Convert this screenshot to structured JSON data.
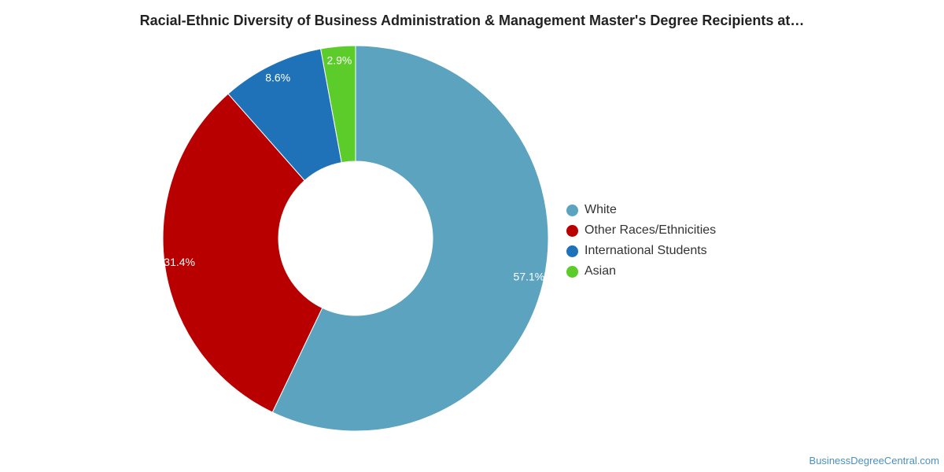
{
  "chart_data": {
    "type": "pie",
    "donut": true,
    "title": "Racial-Ethnic Diversity of Business Administration & Management Master's Degree Recipients at…",
    "categories": [
      "White",
      "Other Races/Ethnicities",
      "International Students",
      "Asian"
    ],
    "values": [
      57.1,
      31.4,
      8.6,
      2.9
    ],
    "value_labels": [
      "57.1%",
      "31.4%",
      "8.6%",
      "2.9%"
    ],
    "colors": [
      "#5ba3bf",
      "#b90000",
      "#1f72b8",
      "#5ccc2a"
    ],
    "start_angle": "top",
    "direction": "clockwise",
    "legend_position": "right"
  },
  "legend": {
    "items": [
      {
        "label": "White",
        "color": "#5ba3bf"
      },
      {
        "label": "Other Races/Ethnicities",
        "color": "#b90000"
      },
      {
        "label": "International Students",
        "color": "#1f72b8"
      },
      {
        "label": "Asian",
        "color": "#5ccc2a"
      }
    ]
  },
  "watermark": "BusinessDegreeCentral.com"
}
